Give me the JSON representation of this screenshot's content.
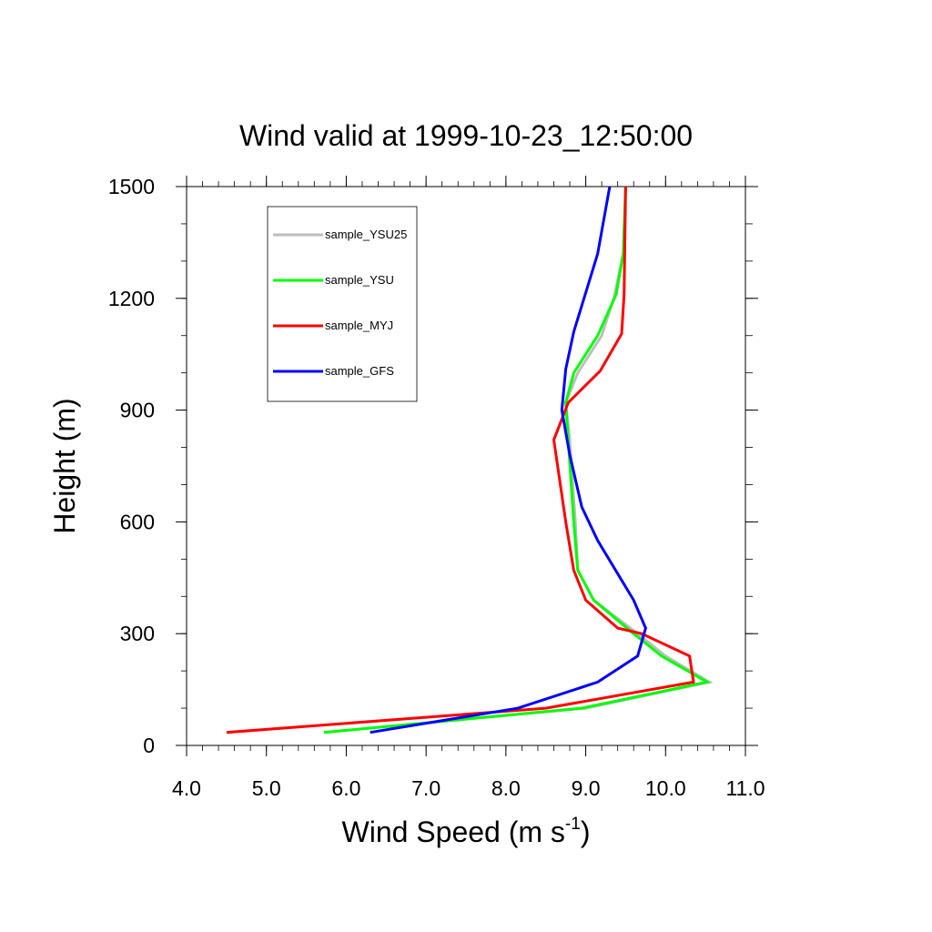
{
  "chart_data": {
    "type": "line",
    "title": "Wind valid at 1999-10-23_12:50:00",
    "xlabel": "Wind Speed (m s",
    "xlabel_sup": "-1",
    "xlabel_tail": ")",
    "ylabel": "Height (m)",
    "xlim": [
      4.0,
      11.0
    ],
    "ylim": [
      0,
      1500
    ],
    "xticks": [
      "4.0",
      "5.0",
      "6.0",
      "7.0",
      "8.0",
      "9.0",
      "10.0",
      "11.0"
    ],
    "yticks": [
      "0",
      "300",
      "600",
      "900",
      "1200",
      "1500"
    ],
    "grid": false,
    "legend_position": "top-left",
    "series": [
      {
        "name": "sample_YSU25",
        "color": "#bebebe",
        "points": [
          [
            5.72,
            35
          ],
          [
            9.0,
            100
          ],
          [
            10.55,
            170
          ],
          [
            10.0,
            240
          ],
          [
            9.65,
            300
          ],
          [
            9.1,
            390
          ],
          [
            8.9,
            470
          ],
          [
            8.87,
            600
          ],
          [
            8.8,
            820
          ],
          [
            8.75,
            920
          ],
          [
            8.9,
            1000
          ],
          [
            9.2,
            1100
          ],
          [
            9.35,
            1200
          ],
          [
            9.47,
            1320
          ],
          [
            9.5,
            1500
          ]
        ]
      },
      {
        "name": "sample_YSU",
        "color": "#00ff00",
        "points": [
          [
            5.72,
            35
          ],
          [
            8.95,
            100
          ],
          [
            10.52,
            170
          ],
          [
            9.95,
            240
          ],
          [
            9.6,
            300
          ],
          [
            9.1,
            390
          ],
          [
            8.9,
            470
          ],
          [
            8.85,
            600
          ],
          [
            8.78,
            820
          ],
          [
            8.75,
            920
          ],
          [
            8.85,
            1000
          ],
          [
            9.15,
            1100
          ],
          [
            9.38,
            1210
          ],
          [
            9.47,
            1320
          ],
          [
            9.5,
            1500
          ]
        ]
      },
      {
        "name": "sample_MYJ",
        "color": "#ff0000",
        "points": [
          [
            4.5,
            35
          ],
          [
            8.5,
            100
          ],
          [
            10.35,
            170
          ],
          [
            10.3,
            240
          ],
          [
            9.7,
            300
          ],
          [
            9.4,
            315
          ],
          [
            9.0,
            390
          ],
          [
            8.85,
            470
          ],
          [
            8.75,
            600
          ],
          [
            8.6,
            820
          ],
          [
            8.78,
            920
          ],
          [
            9.18,
            1005
          ],
          [
            9.45,
            1105
          ],
          [
            9.48,
            1210
          ],
          [
            9.5,
            1500
          ]
        ]
      },
      {
        "name": "sample_GFS",
        "color": "#0000ff",
        "points": [
          [
            6.3,
            35
          ],
          [
            8.15,
            100
          ],
          [
            9.15,
            170
          ],
          [
            9.65,
            240
          ],
          [
            9.75,
            315
          ],
          [
            9.6,
            390
          ],
          [
            9.15,
            550
          ],
          [
            8.95,
            640
          ],
          [
            8.8,
            780
          ],
          [
            8.7,
            900
          ],
          [
            8.75,
            1010
          ],
          [
            8.85,
            1110
          ],
          [
            9.15,
            1320
          ],
          [
            9.3,
            1500
          ]
        ]
      }
    ]
  }
}
